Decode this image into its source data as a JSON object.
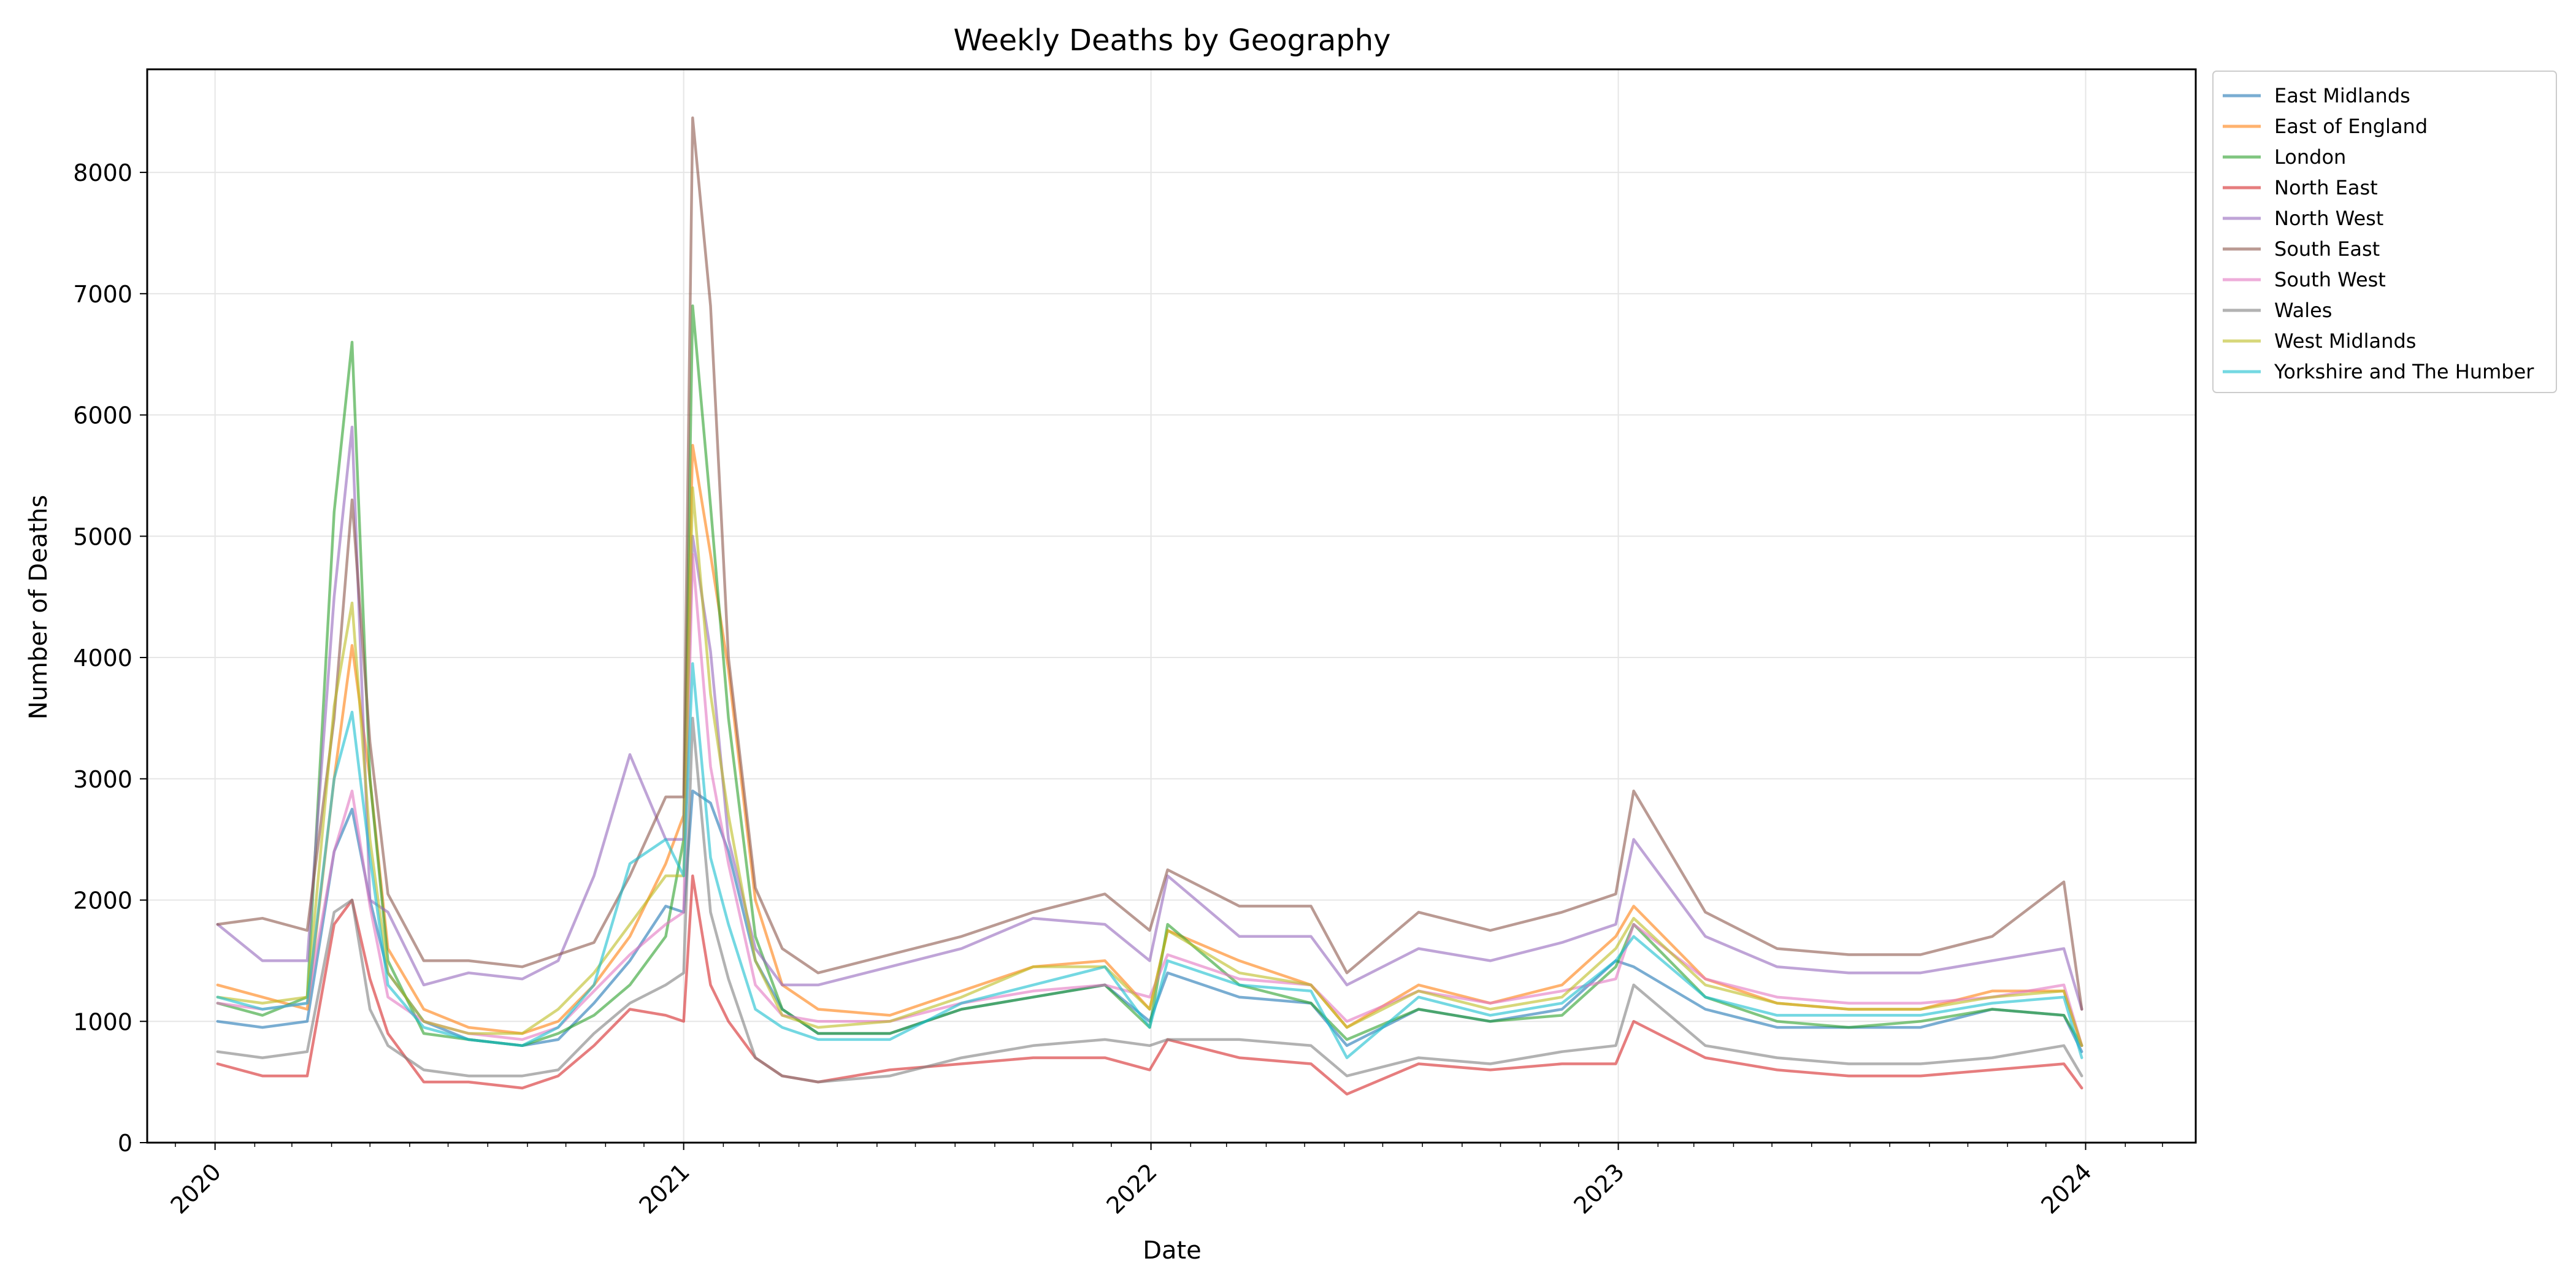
{
  "chart_data": {
    "type": "line",
    "title": "Weekly Deaths by Geography",
    "xlabel": "Date",
    "ylabel": "Number of Deaths",
    "x_ticks": [
      "2020",
      "2021",
      "2022",
      "2023",
      "2024"
    ],
    "y_ticks": [
      "0",
      "1000",
      "2000",
      "3000",
      "4000",
      "5000",
      "6000",
      "7000",
      "8000"
    ],
    "xlim": [
      "2019-11-09",
      "2024-03-27"
    ],
    "ylim": [
      0,
      8850
    ],
    "grid": true,
    "legend_position": "upper-right-outside",
    "x_dates": [
      "2020-01-03",
      "2020-02-07",
      "2020-03-13",
      "2020-04-03",
      "2020-04-17",
      "2020-05-01",
      "2020-05-15",
      "2020-06-12",
      "2020-07-17",
      "2020-08-28",
      "2020-09-25",
      "2020-10-23",
      "2020-11-20",
      "2020-12-18",
      "2021-01-01",
      "2021-01-08",
      "2021-01-22",
      "2021-02-05",
      "2021-02-26",
      "2021-03-19",
      "2021-04-16",
      "2021-06-11",
      "2021-08-06",
      "2021-10-01",
      "2021-11-26",
      "2021-12-31",
      "2022-01-14",
      "2022-03-11",
      "2022-05-06",
      "2022-06-03",
      "2022-07-29",
      "2022-09-23",
      "2022-11-18",
      "2022-12-30",
      "2023-01-13",
      "2023-03-10",
      "2023-05-05",
      "2023-06-30",
      "2023-08-25",
      "2023-10-20",
      "2023-12-15",
      "2023-12-29"
    ],
    "series": [
      {
        "name": "East Midlands",
        "color": "#1f77b4",
        "values": [
          1000,
          950,
          1000,
          2400,
          2750,
          2000,
          1400,
          1000,
          850,
          800,
          850,
          1150,
          1500,
          1950,
          1900,
          2900,
          2800,
          2400,
          1500,
          1100,
          900,
          900,
          1100,
          1200,
          1300,
          1000,
          1400,
          1200,
          1150,
          800,
          1100,
          1000,
          1100,
          1500,
          1450,
          1100,
          950,
          950,
          950,
          1100,
          1050,
          750
        ]
      },
      {
        "name": "East of England",
        "color": "#ff7f0e",
        "values": [
          1300,
          1200,
          1100,
          3000,
          4100,
          3000,
          1600,
          1100,
          950,
          900,
          1000,
          1300,
          1700,
          2300,
          2700,
          5750,
          4850,
          3900,
          2000,
          1300,
          1100,
          1050,
          1250,
          1450,
          1500,
          1100,
          1750,
          1500,
          1300,
          950,
          1300,
          1150,
          1300,
          1700,
          1950,
          1350,
          1150,
          1100,
          1100,
          1250,
          1250,
          800
        ]
      },
      {
        "name": "London",
        "color": "#2ca02c",
        "values": [
          1150,
          1050,
          1200,
          5200,
          6600,
          3000,
          1500,
          900,
          850,
          800,
          900,
          1050,
          1300,
          1700,
          2500,
          6900,
          5250,
          3500,
          1700,
          1100,
          900,
          900,
          1100,
          1200,
          1300,
          950,
          1800,
          1300,
          1150,
          850,
          1100,
          1000,
          1050,
          1450,
          1800,
          1200,
          1000,
          950,
          1000,
          1100,
          1050,
          800
        ]
      },
      {
        "name": "North East",
        "color": "#d62728",
        "values": [
          650,
          550,
          550,
          1800,
          2000,
          1350,
          900,
          500,
          500,
          450,
          550,
          800,
          1100,
          1050,
          1000,
          2200,
          1300,
          1000,
          700,
          550,
          500,
          600,
          650,
          700,
          700,
          600,
          850,
          700,
          650,
          400,
          650,
          600,
          650,
          650,
          1000,
          700,
          600,
          550,
          550,
          600,
          650,
          450
        ]
      },
      {
        "name": "North West",
        "color": "#9467bd",
        "values": [
          1800,
          1500,
          1500,
          4500,
          5900,
          2000,
          1900,
          1300,
          1400,
          1350,
          1500,
          2200,
          3200,
          2500,
          2500,
          5000,
          4050,
          2500,
          1600,
          1300,
          1300,
          1450,
          1600,
          1850,
          1800,
          1500,
          2200,
          1700,
          1700,
          1300,
          1600,
          1500,
          1650,
          1800,
          2500,
          1700,
          1450,
          1400,
          1400,
          1500,
          1600,
          1100
        ]
      },
      {
        "name": "South East",
        "color": "#8c564b",
        "values": [
          1800,
          1850,
          1750,
          3500,
          5300,
          3300,
          2050,
          1500,
          1500,
          1450,
          1550,
          1650,
          2200,
          2850,
          2850,
          8450,
          6900,
          4000,
          2100,
          1600,
          1400,
          1550,
          1700,
          1900,
          2050,
          1750,
          2250,
          1950,
          1950,
          1400,
          1900,
          1750,
          1900,
          2050,
          2900,
          1900,
          1600,
          1550,
          1550,
          1700,
          2150,
          1100
        ]
      },
      {
        "name": "South West",
        "color": "#e377c2",
        "values": [
          1150,
          1100,
          1150,
          2400,
          2900,
          1950,
          1200,
          1000,
          900,
          850,
          950,
          1250,
          1550,
          1800,
          1900,
          4850,
          3100,
          2300,
          1300,
          1050,
          1000,
          1000,
          1150,
          1250,
          1300,
          1200,
          1550,
          1350,
          1300,
          1000,
          1250,
          1150,
          1250,
          1350,
          1800,
          1350,
          1200,
          1150,
          1150,
          1200,
          1300,
          800
        ]
      },
      {
        "name": "Wales",
        "color": "#7f7f7f",
        "values": [
          750,
          700,
          750,
          1900,
          2000,
          1100,
          800,
          600,
          550,
          550,
          600,
          900,
          1150,
          1300,
          1400,
          3500,
          1900,
          1350,
          700,
          550,
          500,
          550,
          700,
          800,
          850,
          800,
          850,
          850,
          800,
          550,
          700,
          650,
          750,
          800,
          1300,
          800,
          700,
          650,
          650,
          700,
          800,
          550
        ]
      },
      {
        "name": "West Midlands",
        "color": "#bcbd22",
        "values": [
          1200,
          1150,
          1200,
          3600,
          4450,
          2500,
          1400,
          1000,
          900,
          900,
          1100,
          1400,
          1800,
          2200,
          2200,
          5400,
          3700,
          2700,
          1500,
          1050,
          950,
          1000,
          1200,
          1450,
          1450,
          1100,
          1750,
          1400,
          1300,
          950,
          1250,
          1100,
          1200,
          1600,
          1850,
          1300,
          1150,
          1100,
          1100,
          1200,
          1250,
          800
        ]
      },
      {
        "name": "Yorkshire and The Humber",
        "color": "#17becf",
        "values": [
          1200,
          1100,
          1150,
          3000,
          3550,
          2350,
          1300,
          950,
          850,
          800,
          950,
          1300,
          2300,
          2500,
          2200,
          3950,
          2350,
          1800,
          1100,
          950,
          850,
          850,
          1150,
          1300,
          1450,
          950,
          1500,
          1300,
          1250,
          700,
          1200,
          1050,
          1150,
          1500,
          1700,
          1200,
          1050,
          1050,
          1050,
          1150,
          1200,
          700
        ]
      }
    ]
  }
}
